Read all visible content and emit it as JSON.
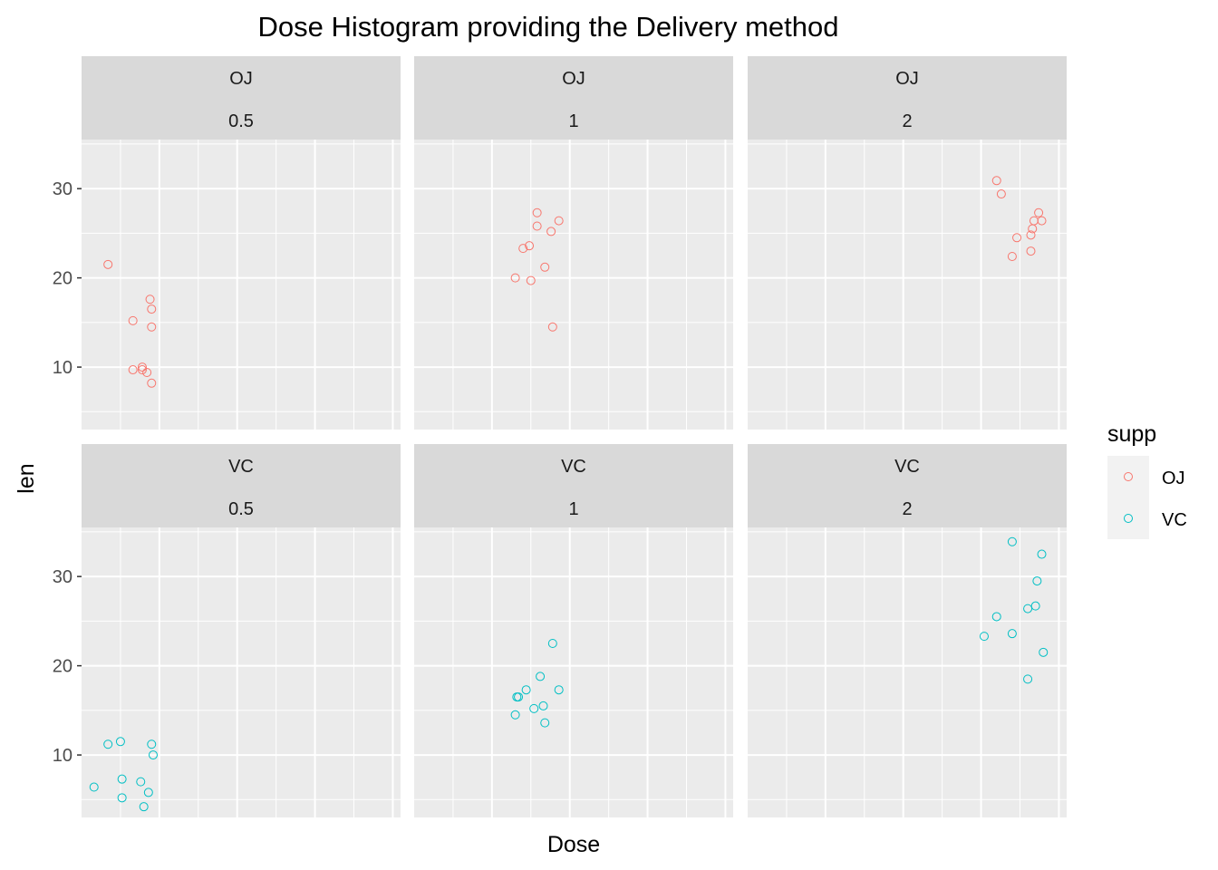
{
  "chart_data": {
    "type": "scatter",
    "title": "Dose Histogram providing  the Delivery method",
    "xlabel": "Dose",
    "ylabel": "len",
    "ylim": [
      3,
      35.5
    ],
    "y_ticks": [
      10,
      20,
      30
    ],
    "grid": true,
    "x_ticks_labeled": false,
    "legend": {
      "title": "supp",
      "position": "right",
      "entries": [
        {
          "label": "OJ",
          "color": "#F8766D"
        },
        {
          "label": "VC",
          "color": "#00BFC4"
        }
      ]
    },
    "panels": [
      {
        "supp": "OJ",
        "dose": "0.5",
        "points": [
          [
            0.17,
            21.5
          ],
          [
            0.33,
            15.2
          ],
          [
            0.33,
            9.7
          ],
          [
            0.39,
            10.0
          ],
          [
            0.39,
            9.7
          ],
          [
            0.42,
            9.4
          ],
          [
            0.44,
            17.6
          ],
          [
            0.45,
            16.5
          ],
          [
            0.45,
            14.5
          ],
          [
            0.45,
            8.2
          ]
        ]
      },
      {
        "supp": "OJ",
        "dose": "1",
        "points": [
          [
            0.65,
            20.0
          ],
          [
            0.7,
            23.3
          ],
          [
            0.74,
            23.6
          ],
          [
            0.75,
            19.7
          ],
          [
            0.79,
            27.3
          ],
          [
            0.79,
            25.8
          ],
          [
            0.84,
            21.2
          ],
          [
            0.88,
            25.2
          ],
          [
            0.89,
            14.5
          ],
          [
            0.93,
            26.4
          ]
        ]
      },
      {
        "supp": "OJ",
        "dose": "2",
        "points": [
          [
            1.6,
            30.9
          ],
          [
            1.63,
            29.4
          ],
          [
            1.7,
            22.4
          ],
          [
            1.73,
            24.5
          ],
          [
            1.82,
            23.0
          ],
          [
            1.82,
            24.8
          ],
          [
            1.83,
            25.5
          ],
          [
            1.84,
            26.4
          ],
          [
            1.87,
            27.3
          ],
          [
            1.89,
            26.4
          ]
        ]
      },
      {
        "supp": "VC",
        "dose": "0.5",
        "points": [
          [
            0.08,
            6.4
          ],
          [
            0.17,
            11.2
          ],
          [
            0.25,
            11.5
          ],
          [
            0.26,
            7.3
          ],
          [
            0.26,
            5.2
          ],
          [
            0.38,
            7.0
          ],
          [
            0.4,
            4.2
          ],
          [
            0.43,
            5.8
          ],
          [
            0.45,
            11.2
          ],
          [
            0.46,
            10.0
          ]
        ]
      },
      {
        "supp": "VC",
        "dose": "1",
        "points": [
          [
            0.65,
            14.5
          ],
          [
            0.66,
            16.5
          ],
          [
            0.67,
            16.5
          ],
          [
            0.72,
            17.3
          ],
          [
            0.77,
            15.2
          ],
          [
            0.81,
            18.8
          ],
          [
            0.83,
            15.5
          ],
          [
            0.84,
            13.6
          ],
          [
            0.89,
            22.5
          ],
          [
            0.93,
            17.3
          ]
        ]
      },
      {
        "supp": "VC",
        "dose": "2",
        "points": [
          [
            1.52,
            23.3
          ],
          [
            1.6,
            25.5
          ],
          [
            1.7,
            33.9
          ],
          [
            1.7,
            23.6
          ],
          [
            1.8,
            26.4
          ],
          [
            1.8,
            18.5
          ],
          [
            1.85,
            26.7
          ],
          [
            1.86,
            29.5
          ],
          [
            1.89,
            32.5
          ],
          [
            1.9,
            21.5
          ]
        ]
      }
    ]
  }
}
